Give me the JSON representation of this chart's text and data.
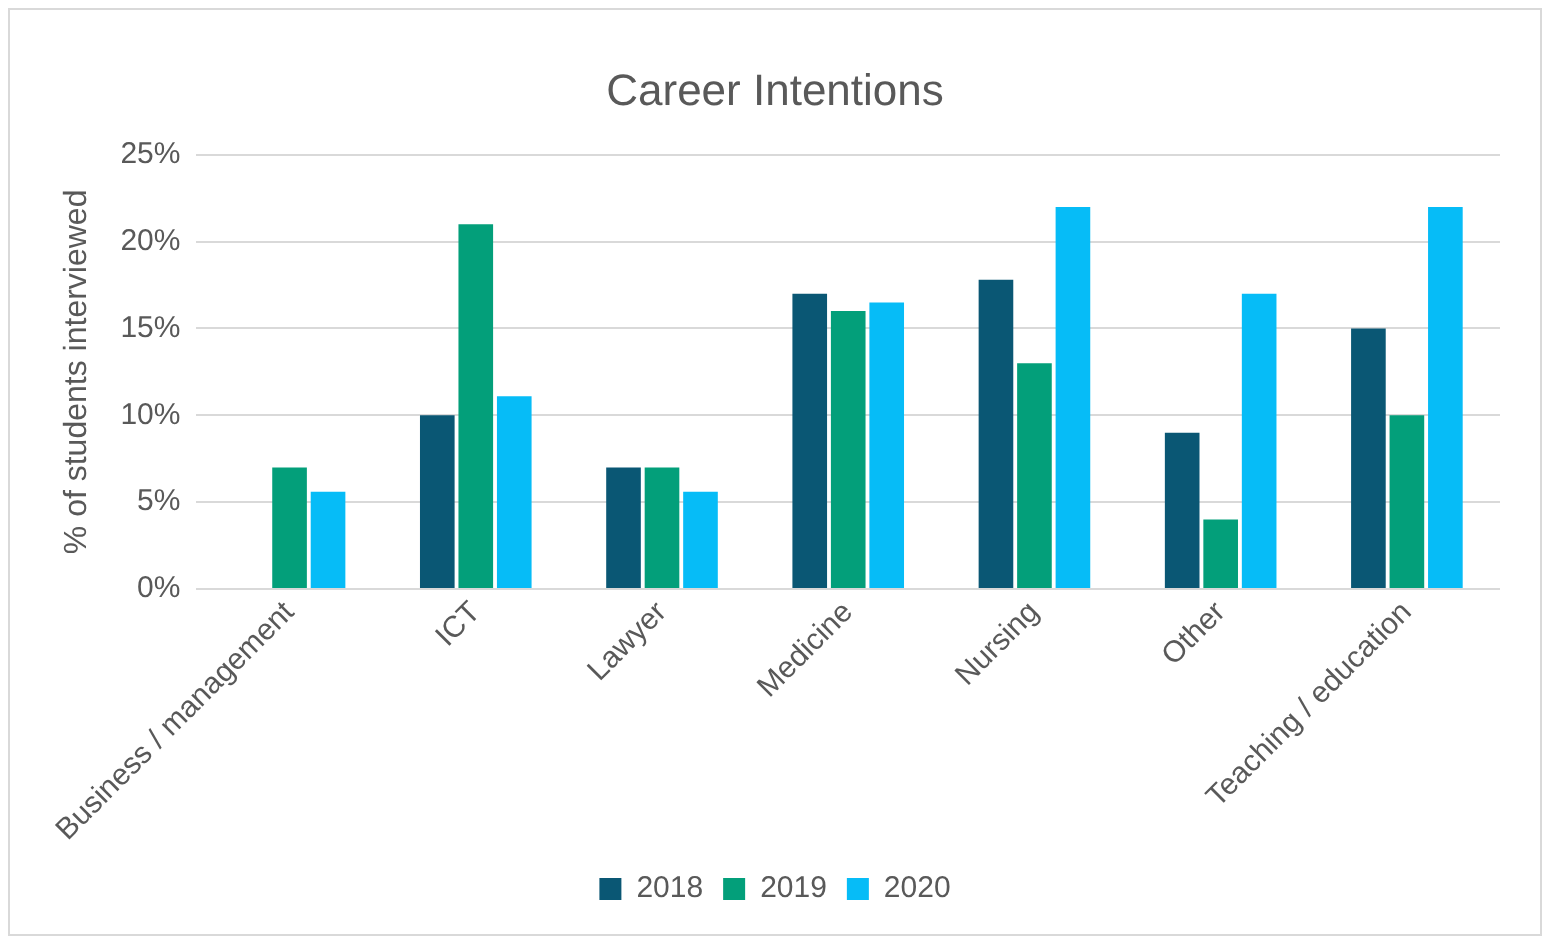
{
  "chart_data": {
    "type": "bar",
    "title": "Career Intentions",
    "ylabel": "% of students interviewed",
    "categories": [
      "Business / management",
      "ICT",
      "Lawyer",
      "Medicine",
      "Nursing",
      "Other",
      "Teaching / education"
    ],
    "series": [
      {
        "name": "2018",
        "color": "#0a5774",
        "values": [
          null,
          10,
          7,
          17,
          17.8,
          9,
          15
        ]
      },
      {
        "name": "2019",
        "color": "#039f7a",
        "values": [
          7,
          21,
          7,
          16,
          13,
          4,
          10
        ]
      },
      {
        "name": "2020",
        "color": "#06bcf7",
        "values": [
          5.6,
          11.1,
          5.6,
          16.5,
          22,
          17,
          22
        ]
      }
    ],
    "ylim": [
      0,
      25
    ],
    "yticks": [
      {
        "value": 0,
        "label": "0%"
      },
      {
        "value": 5,
        "label": "5%"
      },
      {
        "value": 10,
        "label": "10%"
      },
      {
        "value": 15,
        "label": "15%"
      },
      {
        "value": 20,
        "label": "20%"
      },
      {
        "value": 25,
        "label": "25%"
      }
    ],
    "grid": "y",
    "legend": "bottom"
  }
}
